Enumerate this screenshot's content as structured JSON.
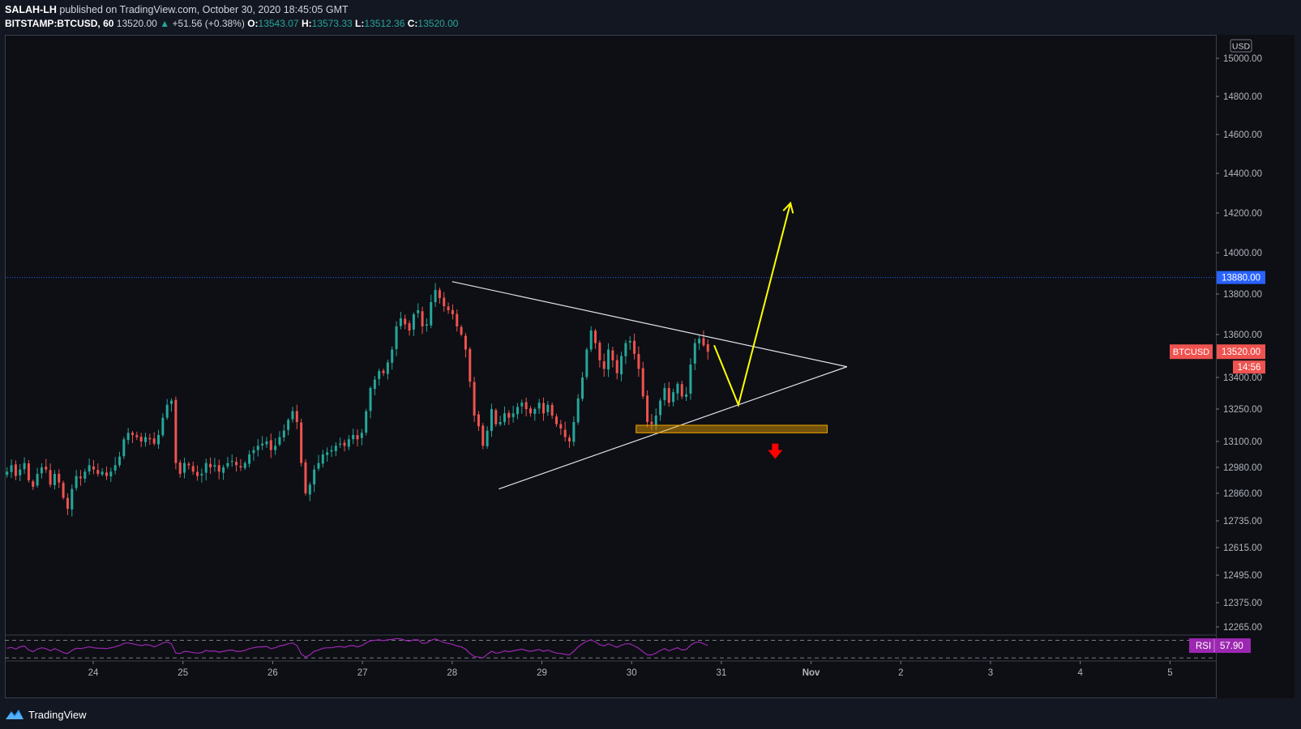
{
  "header": {
    "publisher": "SALAH-LH",
    "published_text": "published on TradingView.com, October 30, 2020 18:45:05 GMT",
    "symbol_interval": "BITSTAMP:BTCUSD, 60",
    "last_price": "13520.00",
    "change": "+51.56 (+0.38%)",
    "o_label": "O:",
    "o_value": "13543.07",
    "h_label": "H:",
    "h_value": "13573.33",
    "l_label": "L:",
    "l_value": "13512.36",
    "c_label": "C:",
    "c_value": "13520.00"
  },
  "footer": {
    "brand": "TradingView"
  },
  "chart_data": {
    "type": "candlestick",
    "symbol": "BTCUSD",
    "currency": "USD",
    "interval": "60",
    "x_ticks": [
      "24",
      "25",
      "26",
      "27",
      "28",
      "29",
      "30",
      "31",
      "Nov",
      "2",
      "3",
      "4",
      "5"
    ],
    "y_ticks": [
      "15000.00",
      "14800.00",
      "14600.00",
      "14400.00",
      "14200.00",
      "14000.00",
      "13800.00",
      "13600.00",
      "13400.00",
      "13250.00",
      "13100.00",
      "12980.00",
      "12860.00",
      "12735.00",
      "12615.00",
      "12495.00",
      "12375.00",
      "12265.00"
    ],
    "y_tick_values": [
      15000,
      14800,
      14600,
      14400,
      14200,
      14000,
      13800,
      13600,
      13400,
      13250,
      13100,
      12980,
      12860,
      12735,
      12615,
      12495,
      12375,
      12265
    ],
    "price_label": {
      "name": "BTCUSD",
      "value": "13520.00",
      "countdown": "14:56",
      "price": 13520
    },
    "horizontal_line": {
      "value": "13880.00",
      "price": 13880
    },
    "closes": [
      12960,
      12990,
      12940,
      12970,
      13000,
      12920,
      12890,
      12950,
      12980,
      12970,
      12900,
      12950,
      12910,
      12840,
      12790,
      12880,
      12940,
      12930,
      12960,
      12990,
      12970,
      12950,
      12960,
      12940,
      12960,
      12990,
      13030,
      13110,
      13140,
      13130,
      13120,
      13100,
      13120,
      13110,
      13090,
      13130,
      13210,
      13270,
      13290,
      13000,
      12950,
      13000,
      12990,
      12960,
      12940,
      12950,
      13000,
      12980,
      12990,
      12960,
      12980,
      13000,
      13010,
      12990,
      12980,
      13000,
      13040,
      13060,
      13080,
      13090,
      13100,
      13060,
      13080,
      13120,
      13150,
      13200,
      13240,
      13190,
      13000,
      12860,
      12900,
      12970,
      13000,
      13040,
      13050,
      13060,
      13080,
      13090,
      13080,
      13110,
      13130,
      13110,
      13140,
      13240,
      13350,
      13390,
      13430,
      13420,
      13470,
      13530,
      13640,
      13680,
      13650,
      13620,
      13700,
      13720,
      13640,
      13650,
      13760,
      13820,
      13780,
      13740,
      13720,
      13700,
      13640,
      13600,
      13530,
      13380,
      13220,
      13170,
      13080,
      13150,
      13250,
      13180,
      13190,
      13230,
      13210,
      13230,
      13260,
      13280,
      13250,
      13230,
      13250,
      13280,
      13230,
      13270,
      13220,
      13180,
      13160,
      13120,
      13100,
      13190,
      13300,
      13400,
      13530,
      13620,
      13560,
      13480,
      13440,
      13530,
      13480,
      13420,
      13500,
      13560,
      13570,
      13510,
      13440,
      13310,
      13190,
      13180,
      13220,
      13290,
      13350,
      13280,
      13330,
      13370,
      13310,
      13320,
      13460,
      13560,
      13580,
      13550,
      13520
    ],
    "rsi": {
      "label": "RSI",
      "value": "57.90",
      "upper_band": 70,
      "lower_band": 30,
      "values": [
        52,
        54,
        50,
        55,
        57,
        48,
        44,
        50,
        53,
        51,
        46,
        51,
        47,
        42,
        40,
        47,
        52,
        51,
        53,
        55,
        53,
        52,
        52,
        51,
        53,
        55,
        58,
        63,
        64,
        62,
        60,
        58,
        60,
        59,
        55,
        59,
        64,
        66,
        62,
        41,
        40,
        45,
        44,
        42,
        41,
        42,
        47,
        45,
        46,
        43,
        45,
        47,
        48,
        45,
        45,
        47,
        51,
        53,
        55,
        55,
        56,
        51,
        53,
        57,
        59,
        62,
        64,
        58,
        39,
        32,
        37,
        45,
        48,
        52,
        53,
        53,
        55,
        56,
        54,
        57,
        58,
        55,
        58,
        64,
        69,
        70,
        71,
        69,
        71,
        72,
        74,
        73,
        70,
        68,
        71,
        71,
        63,
        64,
        70,
        73,
        69,
        65,
        63,
        61,
        57,
        55,
        50,
        40,
        33,
        32,
        30,
        38,
        45,
        41,
        42,
        46,
        44,
        46,
        48,
        50,
        47,
        45,
        47,
        49,
        45,
        48,
        44,
        41,
        40,
        38,
        37,
        45,
        55,
        62,
        68,
        71,
        66,
        60,
        57,
        62,
        58,
        54,
        59,
        62,
        62,
        57,
        52,
        44,
        37,
        37,
        41,
        47,
        51,
        46,
        50,
        53,
        48,
        49,
        59,
        65,
        66,
        62,
        58
      ]
    },
    "annotations": [
      {
        "type": "trendline",
        "label": "triangle-upper",
        "from": {
          "t": 4.0,
          "p": 13860
        },
        "to": {
          "t": 8.4,
          "p": 13450
        }
      },
      {
        "type": "trendline",
        "label": "triangle-lower",
        "from": {
          "t": 4.52,
          "p": 12880
        },
        "to": {
          "t": 8.4,
          "p": 13450
        }
      },
      {
        "type": "rectangle",
        "label": "support-zone",
        "t1": 6.05,
        "t2": 8.18,
        "p_top": 13175,
        "p_bottom": 13140,
        "color": "#f0a500"
      },
      {
        "type": "path",
        "label": "projection",
        "points": [
          {
            "t": 6.92,
            "p": 13550
          },
          {
            "t": 7.19,
            "p": 13270
          },
          {
            "t": 7.77,
            "p": 14250
          }
        ],
        "color": "#ffff00"
      },
      {
        "type": "arrow-down",
        "label": "breakdown-arrow",
        "t": 7.6,
        "p": 13060,
        "color": "#ff0000"
      }
    ],
    "colors": {
      "up": "#26a69a",
      "down": "#ef5350",
      "background": "#131722",
      "price_label": "#ef5350",
      "line_label": "#2962ff",
      "rsi": "#9c27b0"
    }
  }
}
